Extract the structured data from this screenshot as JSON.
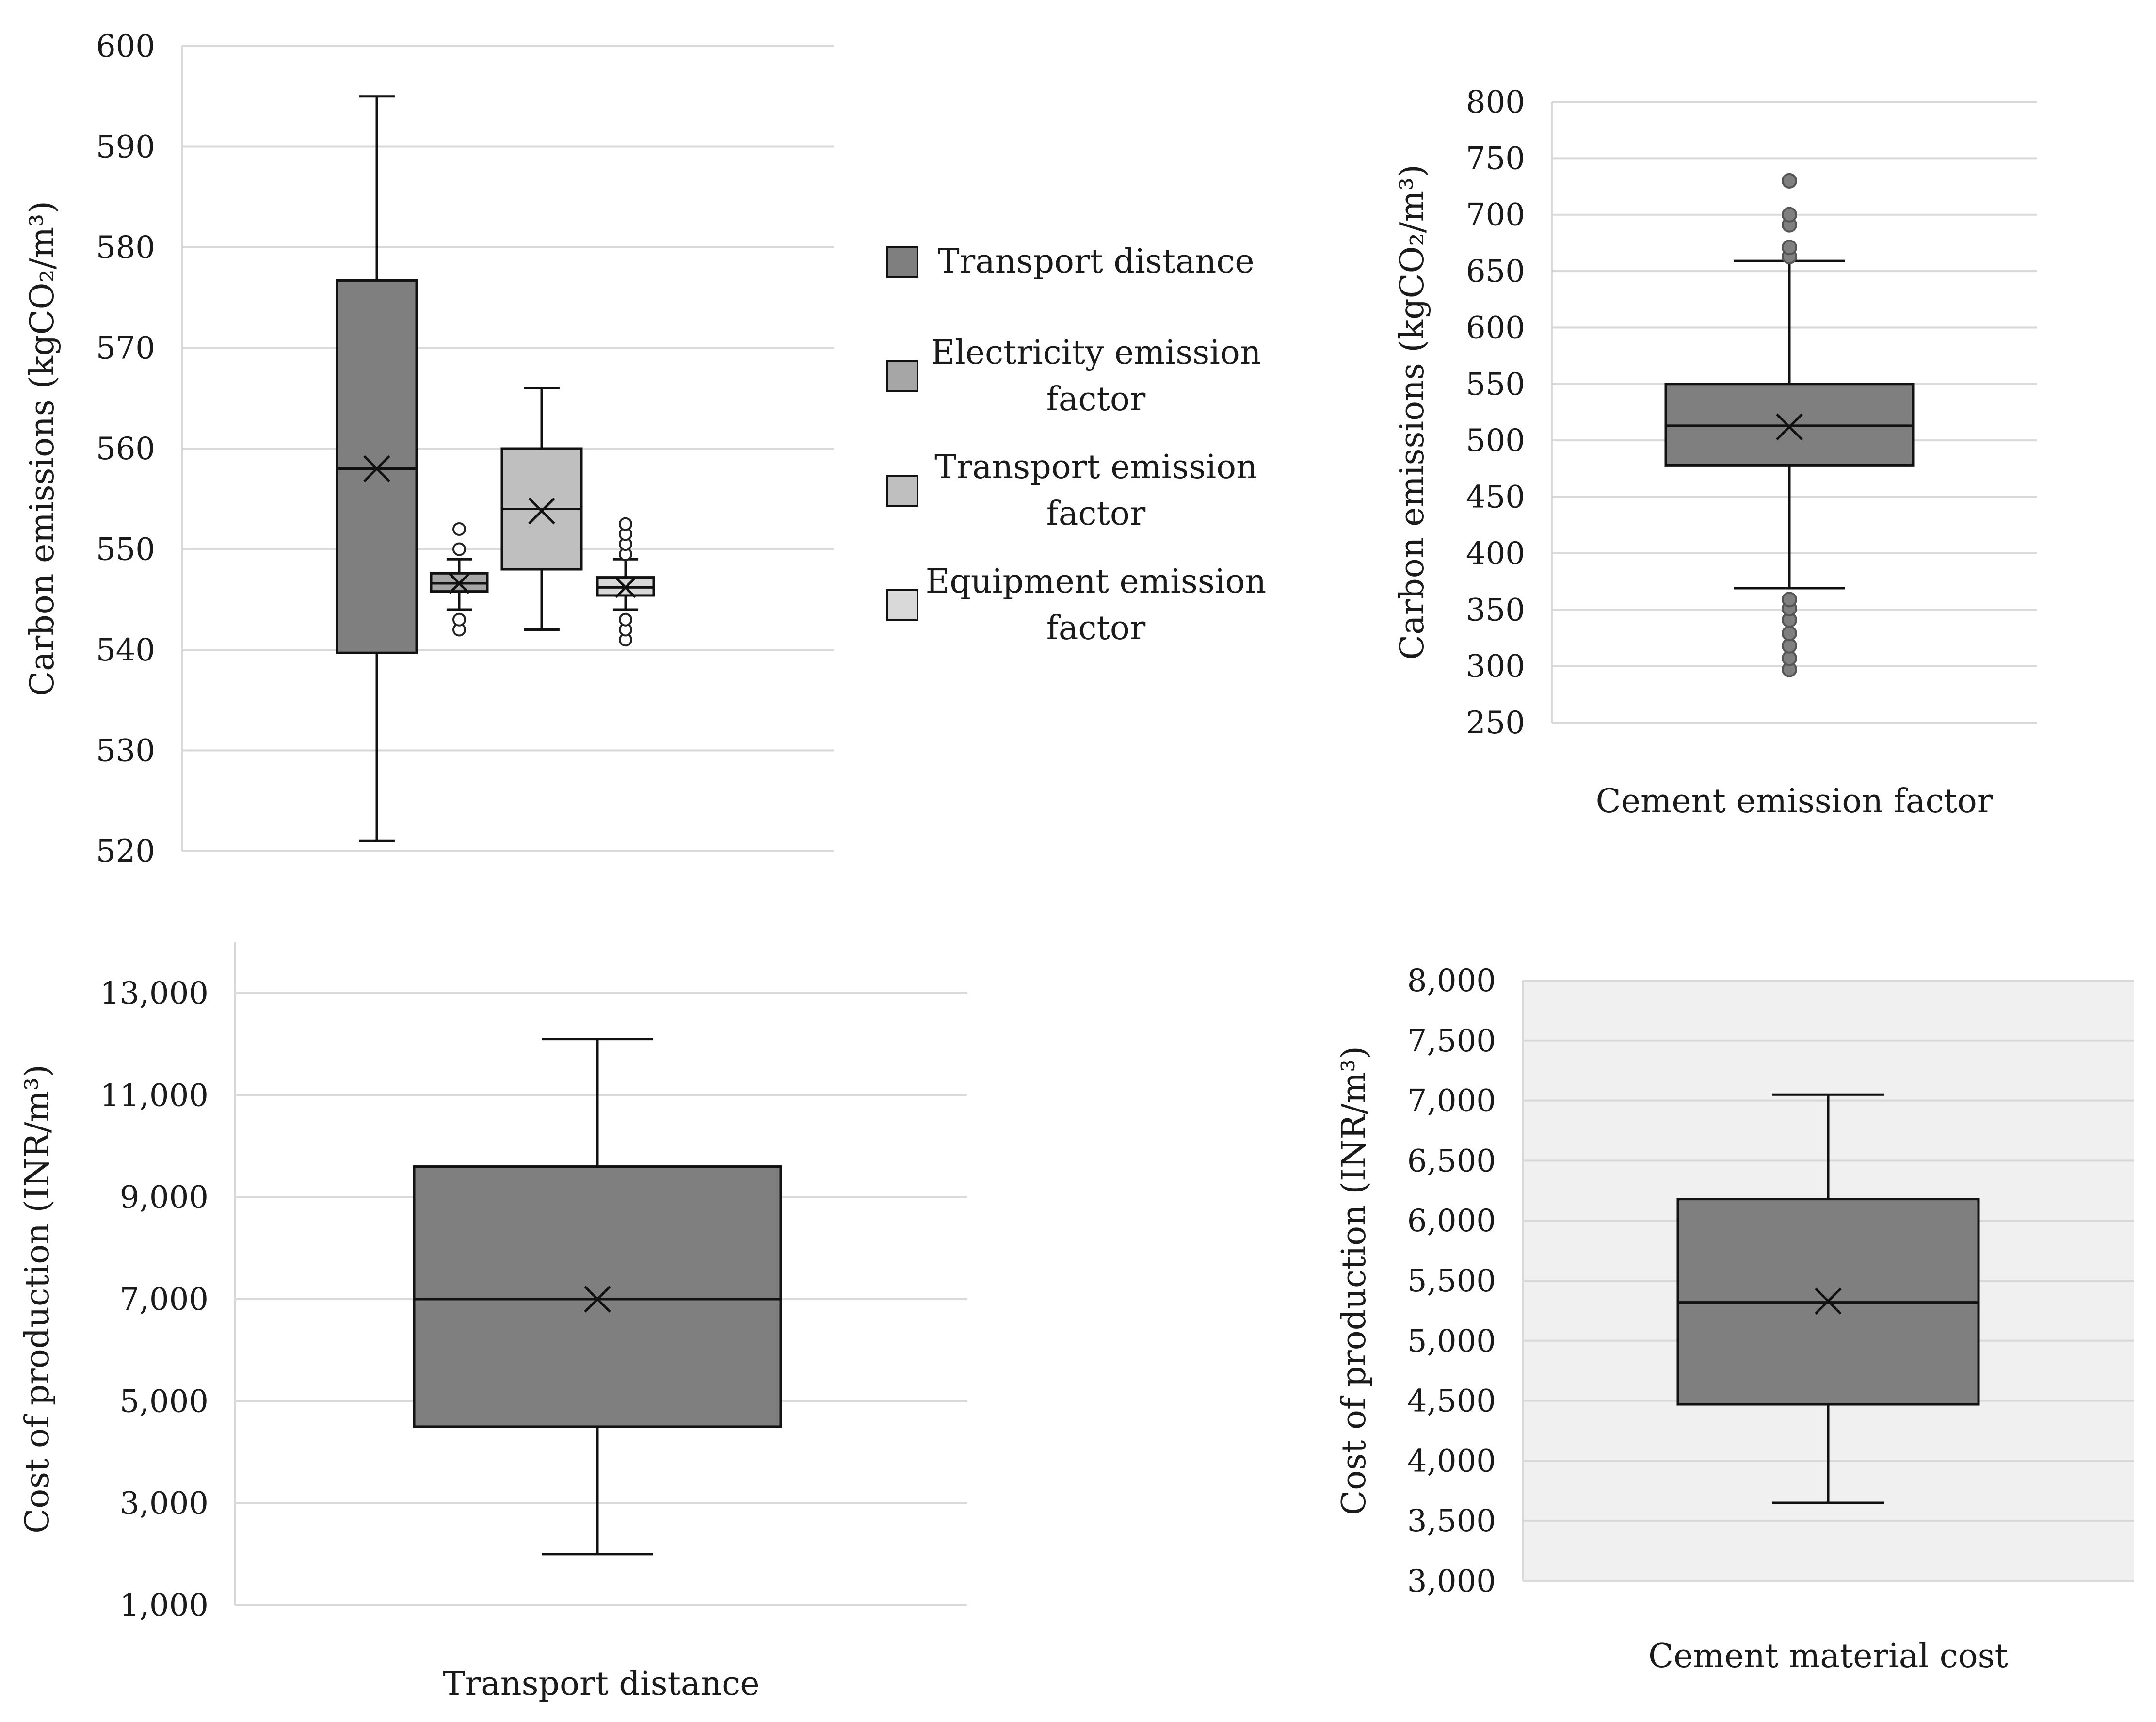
{
  "chart_data": [
    {
      "id": "chart1",
      "type": "boxplot",
      "title": "",
      "ylabel": "Carbon emissions (kgCO₂/m³)",
      "xlabel": "",
      "ylim": [
        520,
        600
      ],
      "yticks": [
        520,
        530,
        540,
        550,
        560,
        570,
        580,
        590,
        600
      ],
      "grid": true,
      "legend": {
        "position": "right",
        "entries": [
          {
            "lines": [
              "Transport distance"
            ],
            "color": "#7f7f7f"
          },
          {
            "lines": [
              "Electricity emission",
              "factor"
            ],
            "color": "#a6a6a6"
          },
          {
            "lines": [
              "Transport emission",
              "factor"
            ],
            "color": "#bfbfbf"
          },
          {
            "lines": [
              "Equipment emission",
              "factor"
            ],
            "color": "#d9d9d9"
          }
        ]
      },
      "series": [
        {
          "name": "Transport distance",
          "color": "#7f7f7f",
          "min": 521,
          "q1": 539.7,
          "median": 558,
          "q3": 576.7,
          "max": 595,
          "mean": 558,
          "outliers": []
        },
        {
          "name": "Electricity emission factor",
          "color": "#a6a6a6",
          "min": 544,
          "q1": 545.8,
          "median": 546.6,
          "q3": 547.6,
          "max": 549,
          "mean": 546.6,
          "outliers": [
            542,
            543,
            550,
            552
          ]
        },
        {
          "name": "Transport emission factor",
          "color": "#bfbfbf",
          "min": 542,
          "q1": 548,
          "median": 554,
          "q3": 560,
          "max": 566,
          "mean": 553.8,
          "outliers": []
        },
        {
          "name": "Equipment emission factor",
          "color": "#d9d9d9",
          "min": 544,
          "q1": 545.4,
          "median": 546.2,
          "q3": 547.2,
          "max": 549,
          "mean": 546.2,
          "outliers": [
            541,
            542,
            543,
            549.5,
            550.5,
            551.5,
            552.5
          ]
        }
      ]
    },
    {
      "id": "chart2",
      "type": "boxplot",
      "title": "",
      "ylabel": "Carbon emissions (kgCO₂/m³)",
      "xlabel": "Cement emission factor",
      "ylim": [
        250,
        800
      ],
      "yticks": [
        250,
        300,
        350,
        400,
        450,
        500,
        550,
        600,
        650,
        700,
        750,
        800
      ],
      "grid": true,
      "series": [
        {
          "name": "Cement emission factor",
          "color": "#7f7f7f",
          "min": 369,
          "q1": 478,
          "median": 513,
          "q3": 550,
          "max": 659,
          "mean": 512,
          "outliers": [
            297,
            307,
            318,
            329,
            341,
            351,
            359,
            663,
            671,
            691,
            700,
            730
          ]
        }
      ]
    },
    {
      "id": "chart3",
      "type": "boxplot",
      "title": "",
      "ylabel": "Cost of production (INR/m³)",
      "xlabel": "Transport distance",
      "ylim": [
        1000,
        14000
      ],
      "yticks": [
        1000,
        3000,
        5000,
        7000,
        9000,
        11000,
        13000
      ],
      "ytick_labels": [
        "1,000",
        "3,000",
        "5,000",
        "7,000",
        "9,000",
        "11,000",
        "13,000"
      ],
      "grid": true,
      "series": [
        {
          "name": "Transport distance",
          "color": "#7f7f7f",
          "min": 2000,
          "q1": 4500,
          "median": 7000,
          "q3": 9600,
          "max": 12100,
          "mean": 7000,
          "outliers": []
        }
      ]
    },
    {
      "id": "chart4",
      "type": "boxplot",
      "title": "",
      "ylabel": "Cost of production  (INR/m³)",
      "xlabel": "Cement material cost",
      "ylim": [
        3000,
        8000
      ],
      "yticks": [
        3000,
        3500,
        4000,
        4500,
        5000,
        5500,
        6000,
        6500,
        7000,
        7500,
        8000
      ],
      "ytick_labels": [
        "3,000",
        "3,500",
        "4,000",
        "4,500",
        "5,000",
        "5,500",
        "6,000",
        "6,500",
        "7,000",
        "7,500",
        "8,000"
      ],
      "grid": true,
      "plot_background": "#f0f0f0",
      "series": [
        {
          "name": "Cement material cost",
          "color": "#7f7f7f",
          "min": 3650,
          "q1": 4470,
          "median": 5320,
          "q3": 6180,
          "max": 7050,
          "mean": 5330,
          "outliers": []
        }
      ]
    }
  ]
}
